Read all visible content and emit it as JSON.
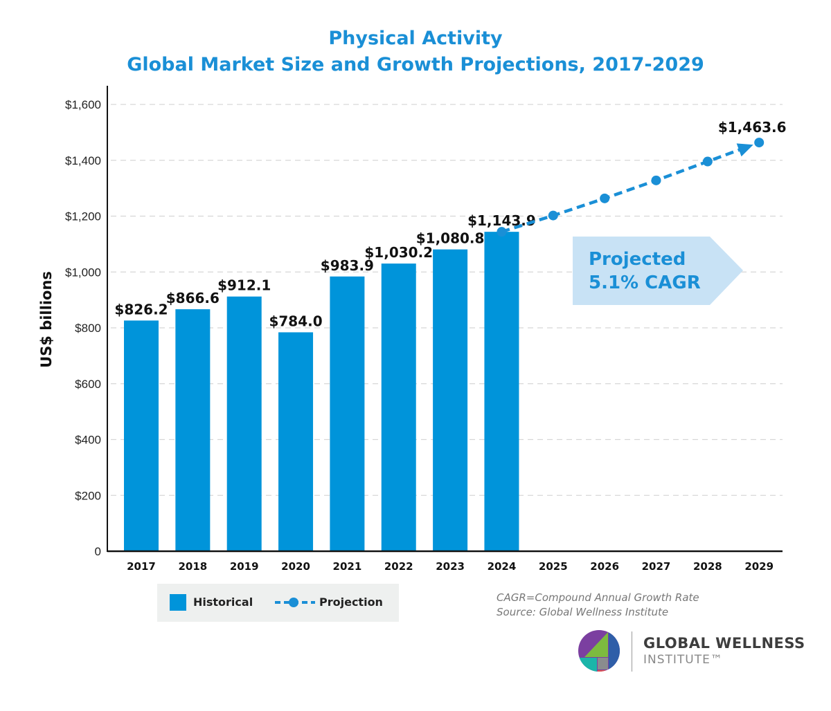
{
  "chart_data": {
    "type": "bar+line",
    "title": "Physical Activity",
    "subtitle": "Global Market Size and Growth Projections, 2017-2029",
    "ylabel": "US$ billions",
    "ylim": [
      0,
      1600
    ],
    "yticks": [
      "0",
      "$200",
      "$400",
      "$600",
      "$800",
      "$1,000",
      "$1,200",
      "$1,400",
      "$1,600"
    ],
    "ytick_values": [
      0,
      200,
      400,
      600,
      800,
      1000,
      1200,
      1400,
      1600
    ],
    "grid": true,
    "categories": [
      "2017",
      "2018",
      "2019",
      "2020",
      "2021",
      "2022",
      "2023",
      "2024",
      "2025",
      "2026",
      "2027",
      "2028",
      "2029"
    ],
    "series": [
      {
        "name": "Historical",
        "type": "bar",
        "x": [
          "2017",
          "2018",
          "2019",
          "2020",
          "2021",
          "2022",
          "2023",
          "2024"
        ],
        "values": [
          826.2,
          866.6,
          912.1,
          784.0,
          983.9,
          1030.2,
          1080.8,
          1143.9
        ],
        "labels": [
          "$826.2",
          "$866.6",
          "$912.1",
          "$784.0",
          "$983.9",
          "$1,030.2",
          "$1,080.8",
          "$1,143.9"
        ]
      },
      {
        "name": "Projection",
        "type": "line",
        "x": [
          "2024",
          "2025",
          "2026",
          "2027",
          "2028",
          "2029"
        ],
        "values": [
          1143.9,
          1202.2,
          1263.5,
          1327.9,
          1395.6,
          1463.6
        ],
        "end_label": "$1,463.6"
      }
    ],
    "annotation": {
      "line1": "Projected",
      "line2": "5.1% CAGR"
    },
    "legend_position": "bottom-left",
    "colors": {
      "bar": "#0094da",
      "line": "#1a8fd6",
      "annotation_bg": "#c8e2f5",
      "annotation_text": "#1a8fd6"
    }
  },
  "footer": {
    "note1": "CAGR=Compound Annual Growth Rate",
    "note2": "Source: Global Wellness Institute"
  },
  "logo": {
    "line1": "GLOBAL WELLNESS",
    "line2": "INSTITUTE™"
  }
}
